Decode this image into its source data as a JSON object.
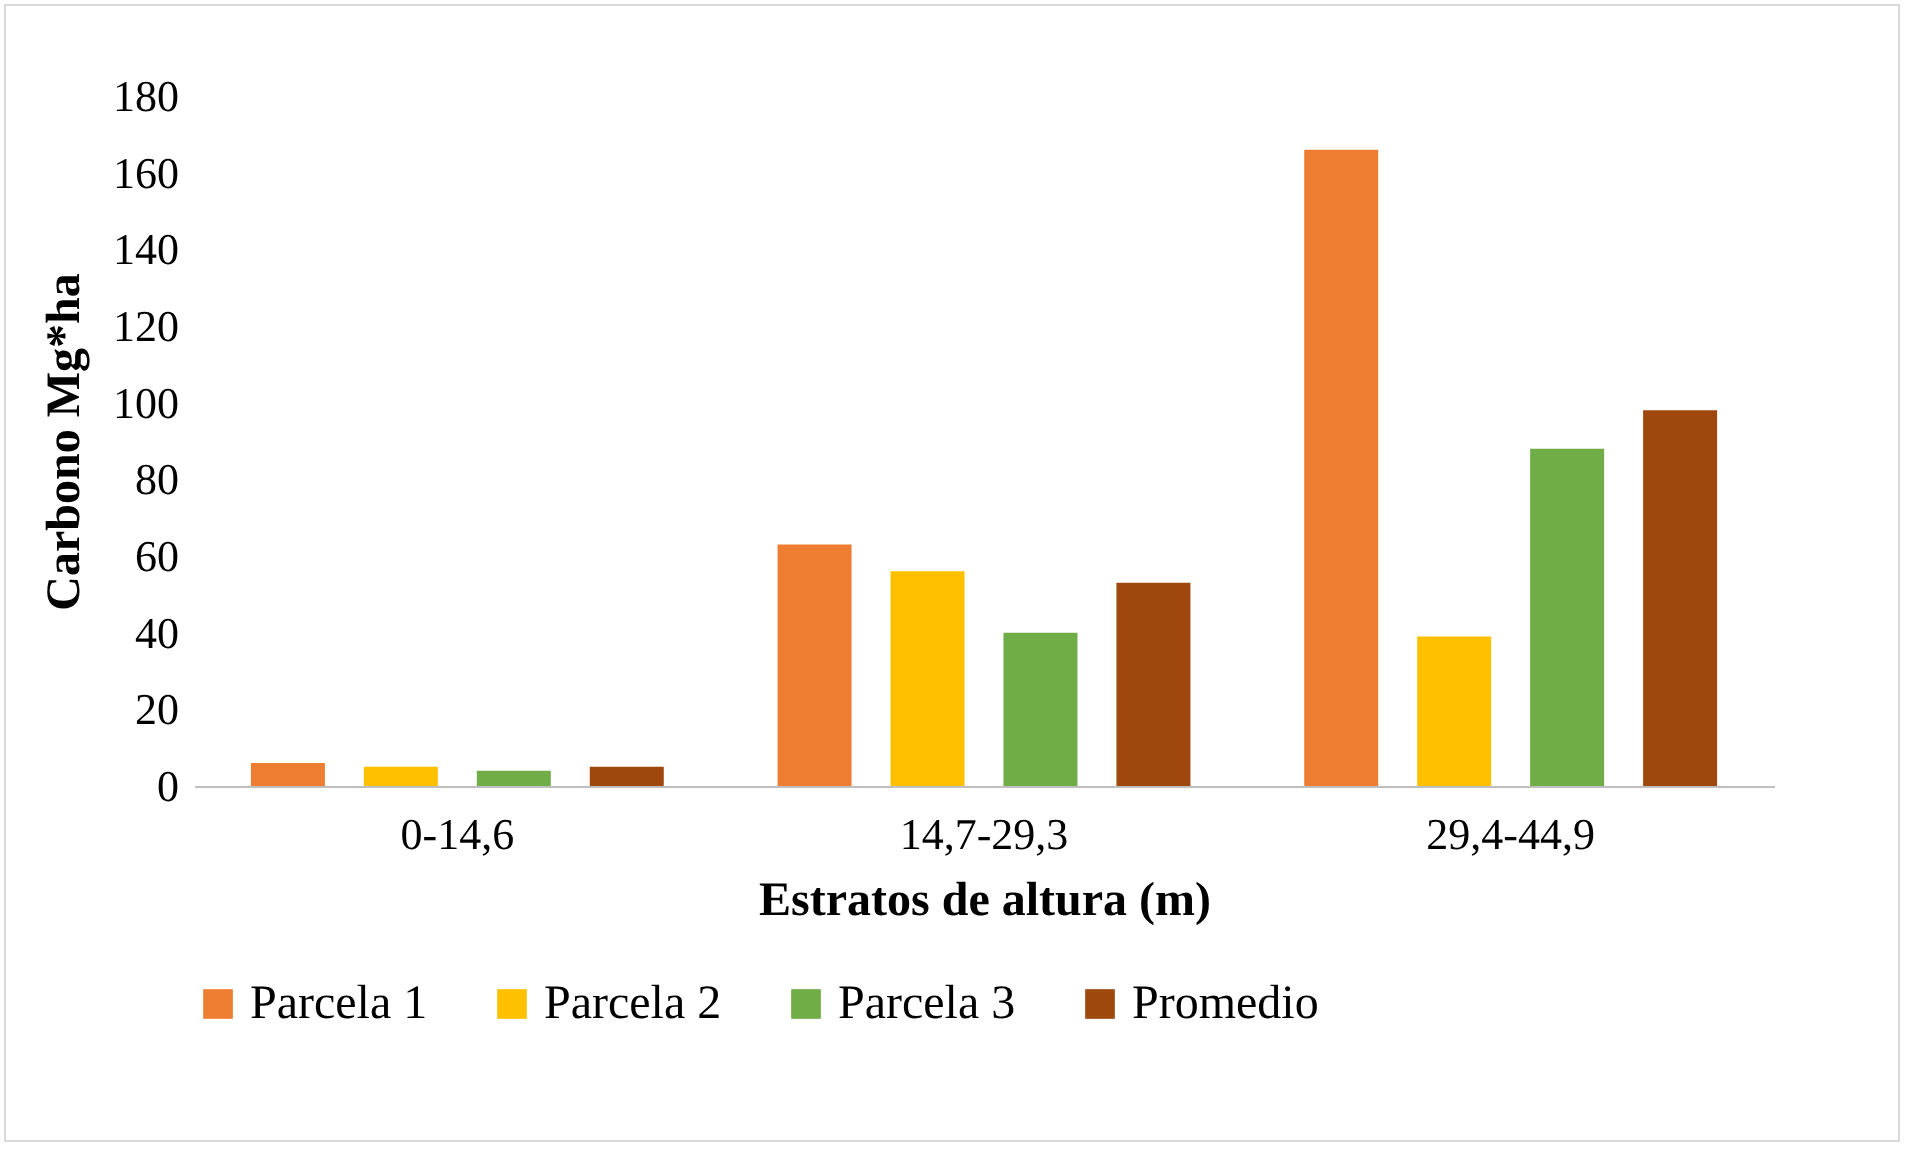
{
  "chart_data": {
    "type": "bar",
    "xlabel": "Estratos de altura (m)",
    "ylabel": "Carbono Mg*ha",
    "categories": [
      "0-14,6",
      "14,7-29,3",
      "29,4-44,9"
    ],
    "series": [
      {
        "name": "Parcela 1",
        "color": "#ed7d31",
        "values": [
          6,
          63,
          166
        ]
      },
      {
        "name": "Parcela 2",
        "color": "#ffc000",
        "values": [
          5,
          56,
          39
        ]
      },
      {
        "name": "Parcela 3",
        "color": "#70ad47",
        "values": [
          4,
          40,
          88
        ]
      },
      {
        "name": "Promedio",
        "color": "#9e480e",
        "values": [
          5,
          53,
          98
        ]
      }
    ],
    "ylim": [
      0,
      180
    ],
    "yticks": [
      0,
      20,
      40,
      60,
      80,
      100,
      120,
      140,
      160,
      180
    ],
    "grid": false,
    "legend": "bottom"
  }
}
